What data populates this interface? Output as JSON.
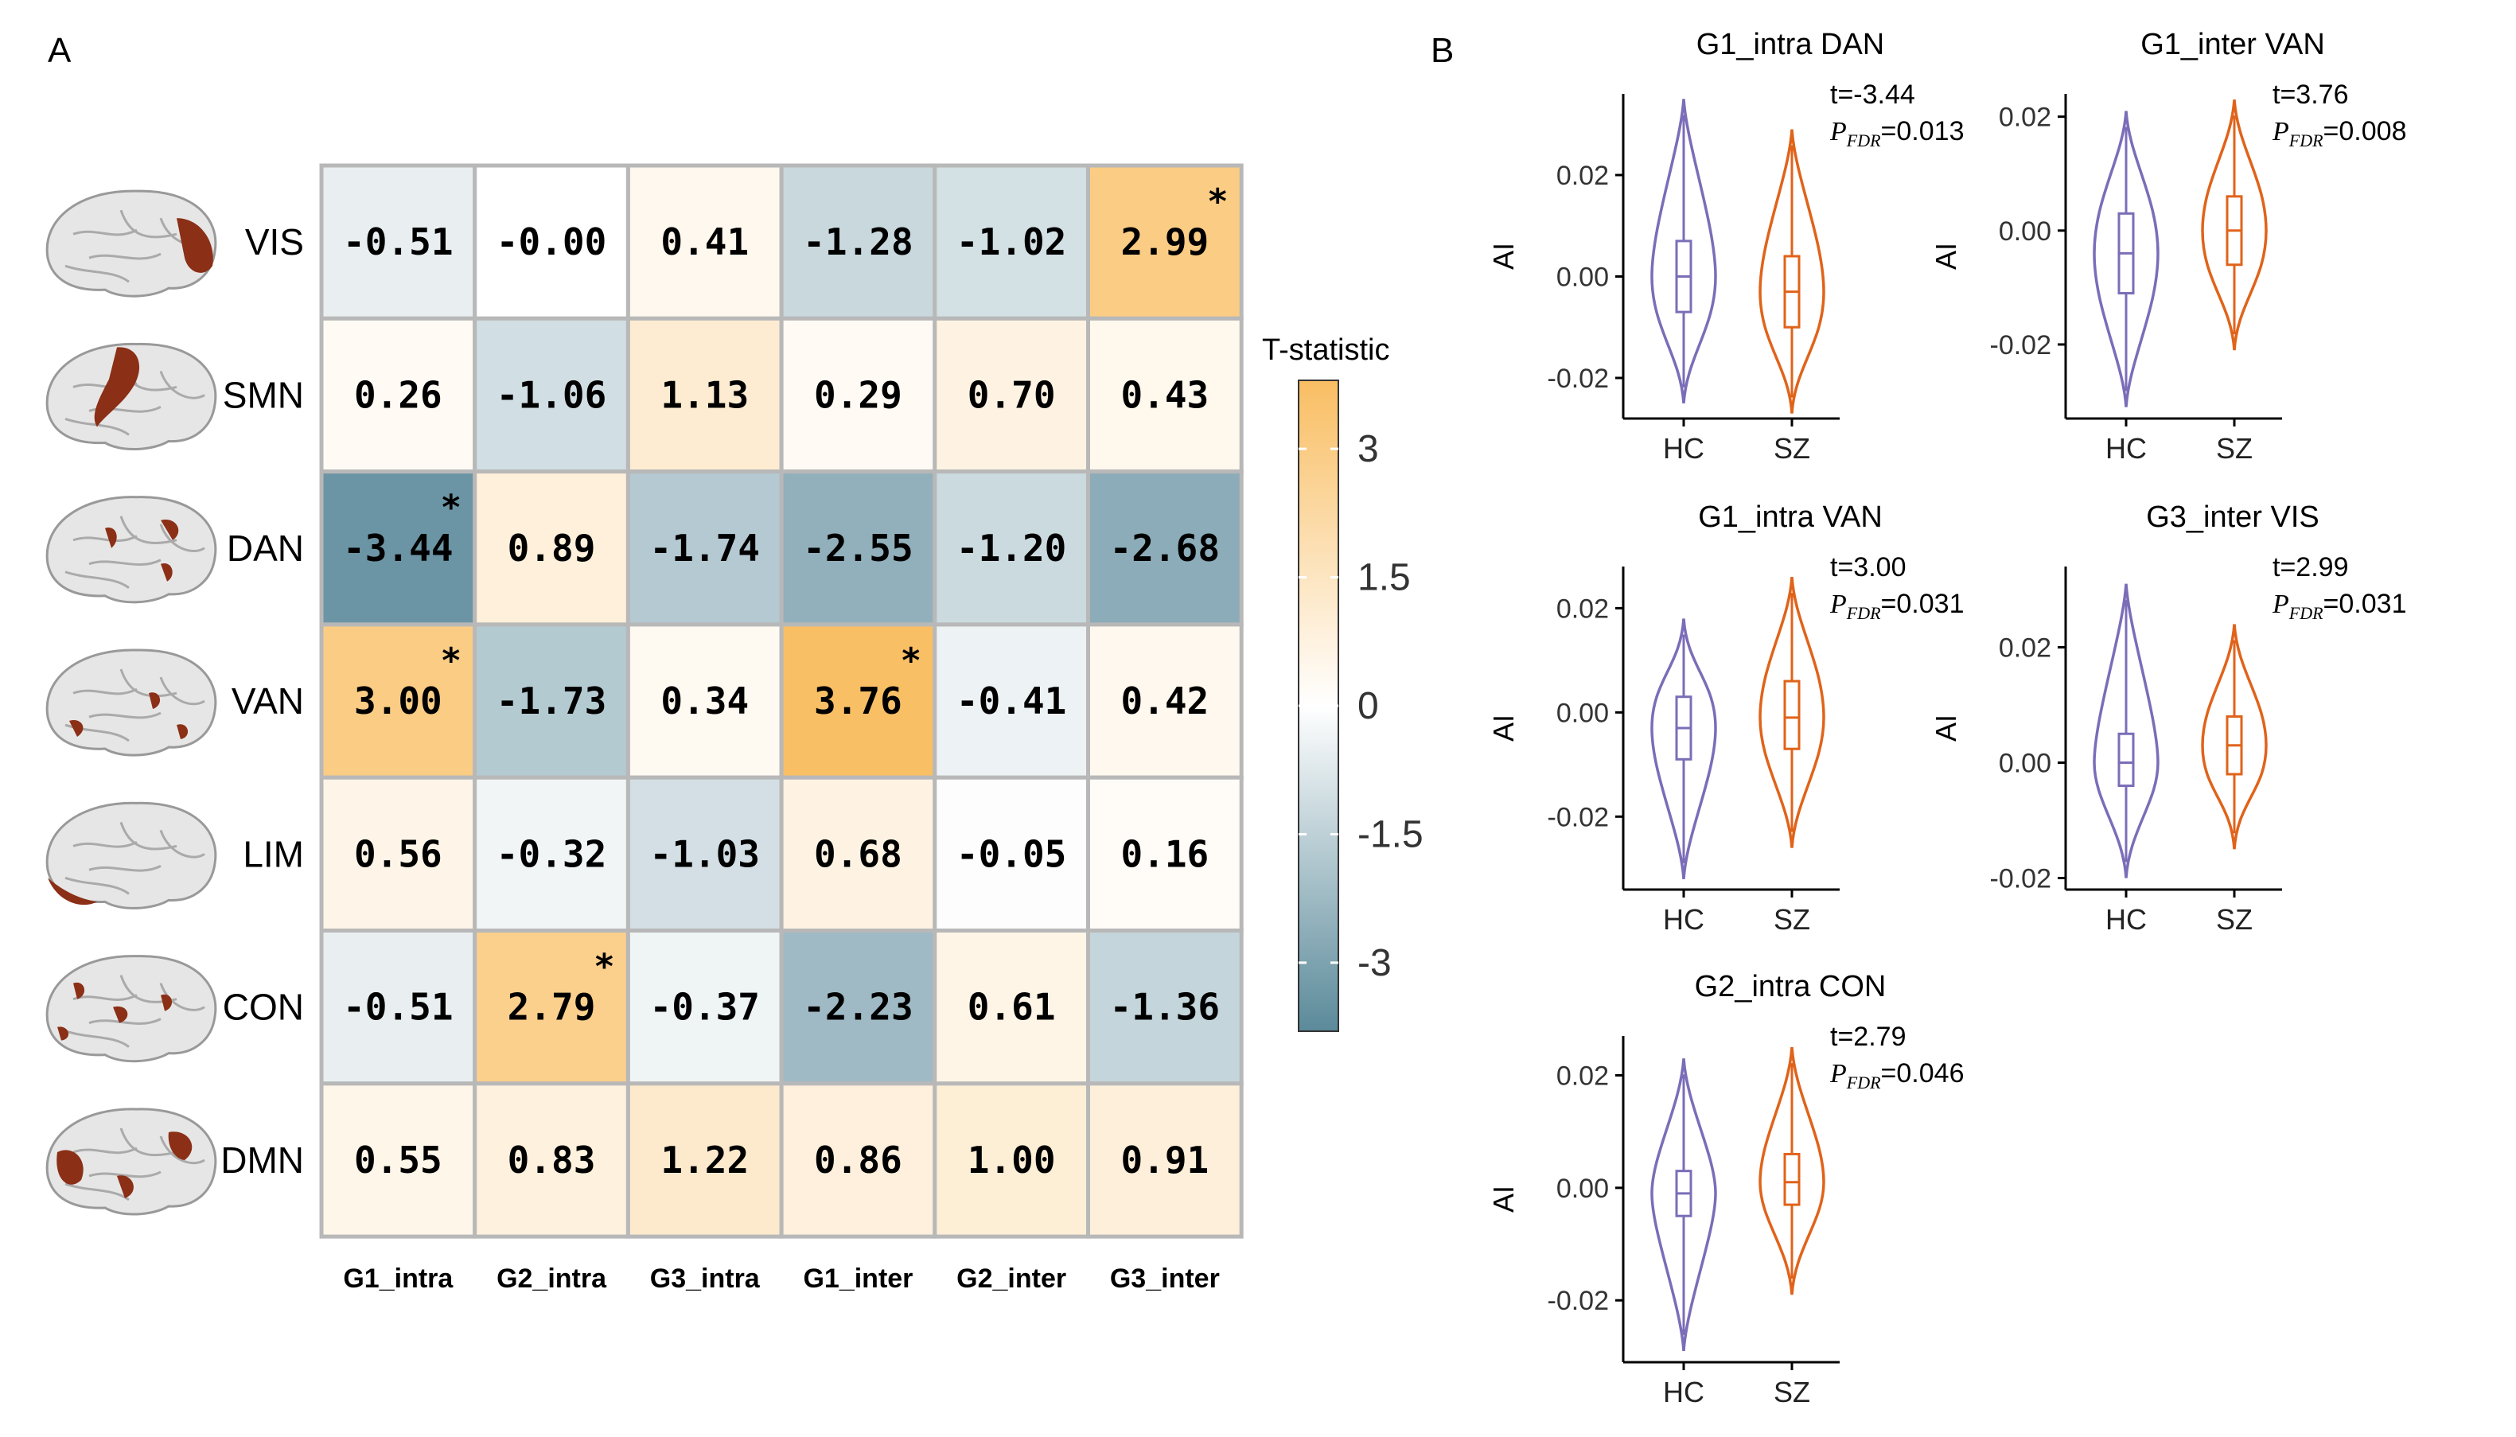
{
  "panel_a": {
    "label": "A",
    "legend_title": "T-statistic",
    "legend_ticks": [
      3,
      1.5,
      0,
      -1.5,
      -3
    ],
    "legend_tick_labels": [
      "3",
      "1.5",
      "0",
      "-1.5",
      "-3"
    ],
    "legend_range": [
      -3.8,
      3.8
    ],
    "colors": {
      "neg": "#5b8a9a",
      "mid": "#ffffff",
      "pos": "#f9be63",
      "cortex": "#8b2f16"
    }
  },
  "panel_b": {
    "label": "B",
    "hc_color": "#7b6db8",
    "sz_color": "#e0631a"
  },
  "chart_data": [
    {
      "type": "heatmap",
      "title": "",
      "rows": [
        "VIS",
        "SMN",
        "DAN",
        "VAN",
        "LIM",
        "CON",
        "DMN"
      ],
      "columns": [
        "G1_intra",
        "G2_intra",
        "G3_intra",
        "G1_inter",
        "G2_inter",
        "G3_inter"
      ],
      "values": [
        [
          "-0.51",
          "-0.00",
          "0.41",
          "-1.28",
          "-1.02",
          "2.99"
        ],
        [
          "0.26",
          "-1.06",
          "1.13",
          "0.29",
          "0.70",
          "0.43"
        ],
        [
          "-3.44",
          "0.89",
          "-1.74",
          "-2.55",
          "-1.20",
          "-2.68"
        ],
        [
          "3.00",
          "-1.73",
          "0.34",
          "3.76",
          "-0.41",
          "0.42"
        ],
        [
          "0.56",
          "-0.32",
          "-1.03",
          "0.68",
          "-0.05",
          "0.16"
        ],
        [
          "-0.51",
          "2.79",
          "-0.37",
          "-2.23",
          "0.61",
          "-1.36"
        ],
        [
          "0.55",
          "0.83",
          "1.22",
          "0.86",
          "1.00",
          "0.91"
        ]
      ],
      "significant": [
        [
          0,
          5
        ],
        [
          2,
          0
        ],
        [
          3,
          0
        ],
        [
          3,
          3
        ],
        [
          5,
          1
        ]
      ],
      "significance_marker": "*",
      "colorbar_label": "T-statistic",
      "colorbar_range": [
        -3.8,
        3.8
      ]
    },
    {
      "type": "violin",
      "title": "G1_intra DAN",
      "ylabel": "AI",
      "categories": [
        "HC",
        "SZ"
      ],
      "yticks": [
        -0.02,
        0.0,
        0.02
      ],
      "ytick_labels": [
        "-0.02",
        "0.00",
        "0.02"
      ],
      "ylim": [
        -0.028,
        0.036
      ],
      "t_text": "t=-3.44",
      "p_value": "=0.013",
      "groups": [
        {
          "name": "HC",
          "min": -0.025,
          "q1": -0.007,
          "median": 0.0,
          "q3": 0.007,
          "max": 0.035,
          "peak": 0.0
        },
        {
          "name": "SZ",
          "min": -0.027,
          "q1": -0.01,
          "median": -0.003,
          "q3": 0.004,
          "max": 0.029,
          "peak": -0.003
        }
      ]
    },
    {
      "type": "violin",
      "title": "G1_inter VAN",
      "ylabel": "AI",
      "categories": [
        "HC",
        "SZ"
      ],
      "yticks": [
        -0.02,
        0.0,
        0.02
      ],
      "ytick_labels": [
        "-0.02",
        "0.00",
        "0.02"
      ],
      "ylim": [
        -0.033,
        0.024
      ],
      "t_text": "t=3.76",
      "p_value": "=0.008",
      "groups": [
        {
          "name": "HC",
          "min": -0.031,
          "q1": -0.011,
          "median": -0.004,
          "q3": 0.003,
          "max": 0.021,
          "peak": -0.004
        },
        {
          "name": "SZ",
          "min": -0.021,
          "q1": -0.006,
          "median": 0.0,
          "q3": 0.006,
          "max": 0.023,
          "peak": 0.0
        }
      ]
    },
    {
      "type": "violin",
      "title": "G1_intra VAN",
      "ylabel": "AI",
      "categories": [
        "HC",
        "SZ"
      ],
      "yticks": [
        -0.02,
        0.0,
        0.02
      ],
      "ytick_labels": [
        "-0.02",
        "0.00",
        "0.02"
      ],
      "ylim": [
        -0.034,
        0.028
      ],
      "t_text": "t=3.00",
      "p_value": "=0.031",
      "groups": [
        {
          "name": "HC",
          "min": -0.032,
          "q1": -0.009,
          "median": -0.003,
          "q3": 0.003,
          "max": 0.018,
          "peak": -0.003
        },
        {
          "name": "SZ",
          "min": -0.026,
          "q1": -0.007,
          "median": -0.001,
          "q3": 0.006,
          "max": 0.026,
          "peak": -0.001
        }
      ]
    },
    {
      "type": "violin",
      "title": "G3_inter VIS",
      "ylabel": "AI",
      "categories": [
        "HC",
        "SZ"
      ],
      "yticks": [
        -0.02,
        0.0,
        0.02
      ],
      "ytick_labels": [
        "-0.02",
        "0.00",
        "0.02"
      ],
      "ylim": [
        -0.022,
        0.034
      ],
      "t_text": "t=2.99",
      "p_value": "=0.031",
      "groups": [
        {
          "name": "HC",
          "min": -0.02,
          "q1": -0.004,
          "median": 0.0,
          "q3": 0.005,
          "max": 0.031,
          "peak": 0.0
        },
        {
          "name": "SZ",
          "min": -0.015,
          "q1": -0.002,
          "median": 0.003,
          "q3": 0.008,
          "max": 0.024,
          "peak": 0.003
        }
      ]
    },
    {
      "type": "violin",
      "title": "G2_intra CON",
      "ylabel": "AI",
      "categories": [
        "HC",
        "SZ"
      ],
      "yticks": [
        -0.02,
        0.0,
        0.02
      ],
      "ytick_labels": [
        "-0.02",
        "0.00",
        "0.02"
      ],
      "ylim": [
        -0.031,
        0.027
      ],
      "t_text": "t=2.79",
      "p_value": "=0.046",
      "groups": [
        {
          "name": "HC",
          "min": -0.029,
          "q1": -0.005,
          "median": -0.001,
          "q3": 0.003,
          "max": 0.023,
          "peak": -0.001
        },
        {
          "name": "SZ",
          "min": -0.019,
          "q1": -0.003,
          "median": 0.001,
          "q3": 0.006,
          "max": 0.025,
          "peak": 0.001
        }
      ]
    }
  ]
}
